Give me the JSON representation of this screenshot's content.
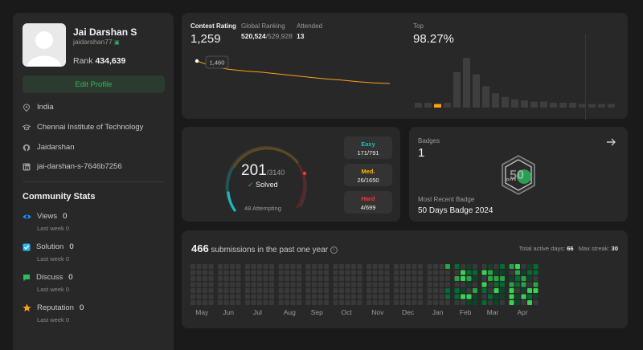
{
  "profile": {
    "name": "Jai Darshan S",
    "handle": "jaidarshan77",
    "rank_label": "Rank",
    "rank_value": "434,639",
    "edit_label": "Edit Profile",
    "location": "India",
    "school": "Chennai Institute of Technology",
    "github": "Jaidarshan",
    "linkedin": "jai-darshan-s-7646b7256"
  },
  "community": {
    "title": "Community Stats",
    "items": [
      {
        "label": "Views",
        "value": "0",
        "sub": "Last week 0",
        "icon": "eye-icon",
        "color": "#1a90ff"
      },
      {
        "label": "Solution",
        "value": "0",
        "sub": "Last week 0",
        "icon": "solution-icon",
        "color": "#2db7f5"
      },
      {
        "label": "Discuss",
        "value": "0",
        "sub": "Last week 0",
        "icon": "discuss-icon",
        "color": "#2cbb5d"
      },
      {
        "label": "Reputation",
        "value": "0",
        "sub": "Last week 0",
        "icon": "star-icon",
        "color": "#ffa116"
      }
    ]
  },
  "contest": {
    "rating_label": "Contest Rating",
    "rating_value": "1,259",
    "global_label": "Global Ranking",
    "global_value": "520,524",
    "global_total": "/529,928",
    "attended_label": "Attended",
    "attended_value": "13",
    "tooltip_value": "1,460",
    "top_label": "Top",
    "top_value": "98.27%",
    "rating_series": [
      1460,
      1410,
      1385,
      1370,
      1360,
      1345,
      1330,
      1315,
      1300,
      1290,
      1275,
      1265,
      1259
    ],
    "histogram": [
      4,
      4,
      3,
      4,
      30,
      42,
      28,
      18,
      12,
      9,
      7,
      6,
      5,
      5,
      4,
      4,
      4,
      3,
      3,
      3,
      3
    ],
    "histogram_highlight_index": 2,
    "accent_color": "#ffa116"
  },
  "solved": {
    "count": "201",
    "total": "/3140",
    "solved_label": "Solved",
    "attempting": "48 Attempting",
    "easy_label": "Easy",
    "easy_value": "171/791",
    "easy_color": "#1cbaba",
    "med_label": "Med.",
    "med_value": "26/1650",
    "med_color": "#ffb700",
    "hard_label": "Hard",
    "hard_value": "4/699",
    "hard_color": "#f63737"
  },
  "badges": {
    "label": "Badges",
    "count": "1",
    "recent_label": "Most Recent Badge",
    "recent_name": "50 Days Badge 2024",
    "badge_text": "DAYS",
    "badge_digit": "50"
  },
  "submissions": {
    "count": "466",
    "text": "submissions in the past one year",
    "active_label": "Total active days:",
    "active_value": "66",
    "streak_label": "Max streak:",
    "streak_value": "30",
    "months": [
      "May",
      "Jun",
      "Jul",
      "Aug",
      "Sep",
      "Oct",
      "Nov",
      "Dec",
      "Jan",
      "Feb",
      "Mar",
      "Apr"
    ],
    "month_weeks": [
      4,
      4,
      5,
      4,
      4,
      5,
      4,
      5,
      4,
      4,
      4,
      5
    ],
    "colors": [
      "#393939",
      "#0e4429",
      "#006d32",
      "#26a641",
      "#39d353"
    ]
  }
}
